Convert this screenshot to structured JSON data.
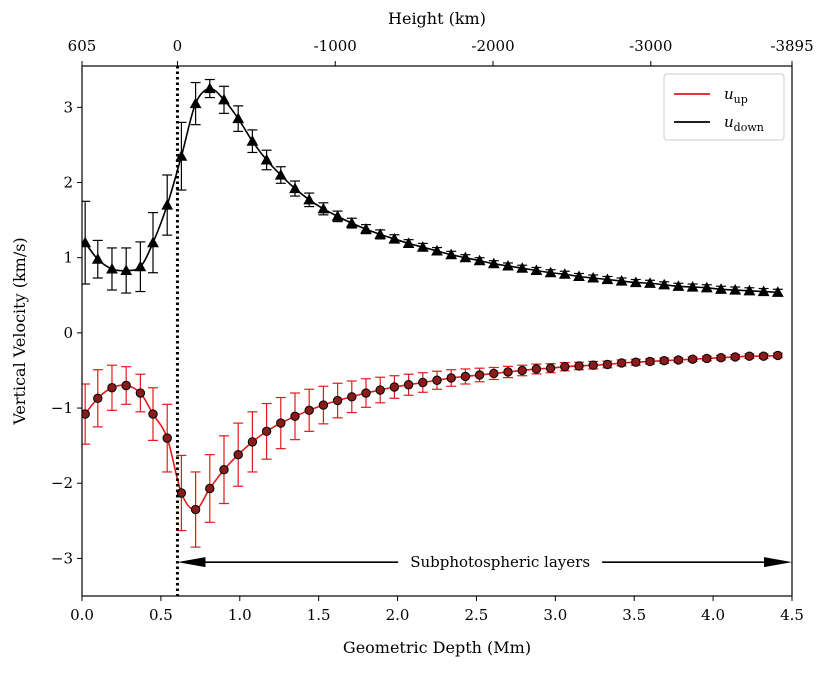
{
  "chart_data": {
    "type": "line",
    "xlabel": "Geometric Depth (Mm)",
    "ylabel": "Vertical Velocity (km/s)",
    "top_xlabel": "Height (km)",
    "xlim": [
      0.0,
      4.5
    ],
    "ylim": [
      -3.5,
      3.55
    ],
    "xticks": [
      0.0,
      0.5,
      1.0,
      1.5,
      2.0,
      2.5,
      3.0,
      3.5,
      4.0,
      4.5
    ],
    "xtick_labels": [
      "0.0",
      "0.5",
      "1.0",
      "1.5",
      "2.0",
      "2.5",
      "3.0",
      "3.5",
      "4.0",
      "4.5"
    ],
    "yticks": [
      -3,
      -2,
      -1,
      0,
      1,
      2,
      3
    ],
    "ytick_labels": [
      "−3",
      "−2",
      "−1",
      "0",
      "1",
      "2",
      "3"
    ],
    "top_ticks": [
      {
        "x": 0.0,
        "label": "605"
      },
      {
        "x": 0.605,
        "label": "0"
      },
      {
        "x": 1.605,
        "label": "-1000"
      },
      {
        "x": 2.605,
        "label": "-2000"
      },
      {
        "x": 3.605,
        "label": "-3000"
      },
      {
        "x": 4.5,
        "label": "-3895"
      }
    ],
    "reference_line_x": 0.605,
    "annotation": {
      "text": "Subphotospheric layers",
      "x_start": 0.605,
      "x_end": 4.5,
      "y": -3.05,
      "text_x": 2.65
    },
    "legend_position": "upper right",
    "series": [
      {
        "name": "u_up",
        "legend_main": "u",
        "legend_sub": "up",
        "color": "#e31a1c",
        "marker": "circle",
        "x": [
          0.02,
          0.1,
          0.19,
          0.28,
          0.37,
          0.45,
          0.54,
          0.63,
          0.72,
          0.81,
          0.9,
          0.99,
          1.08,
          1.17,
          1.26,
          1.35,
          1.44,
          1.53,
          1.62,
          1.71,
          1.8,
          1.89,
          1.98,
          2.07,
          2.16,
          2.25,
          2.34,
          2.43,
          2.52,
          2.61,
          2.7,
          2.79,
          2.88,
          2.97,
          3.06,
          3.15,
          3.24,
          3.33,
          3.42,
          3.51,
          3.6,
          3.69,
          3.78,
          3.87,
          3.96,
          4.05,
          4.14,
          4.23,
          4.32,
          4.41
        ],
        "y": [
          -1.08,
          -0.87,
          -0.73,
          -0.7,
          -0.8,
          -1.08,
          -1.4,
          -2.13,
          -2.35,
          -2.07,
          -1.82,
          -1.62,
          -1.45,
          -1.31,
          -1.2,
          -1.11,
          -1.03,
          -0.96,
          -0.9,
          -0.85,
          -0.8,
          -0.76,
          -0.72,
          -0.69,
          -0.66,
          -0.63,
          -0.6,
          -0.58,
          -0.56,
          -0.54,
          -0.52,
          -0.5,
          -0.48,
          -0.47,
          -0.45,
          -0.44,
          -0.43,
          -0.42,
          -0.4,
          -0.39,
          -0.38,
          -0.37,
          -0.36,
          -0.35,
          -0.34,
          -0.33,
          -0.32,
          -0.31,
          -0.31,
          -0.3
        ],
        "err": [
          0.4,
          0.38,
          0.3,
          0.25,
          0.25,
          0.35,
          0.45,
          0.5,
          0.5,
          0.45,
          0.45,
          0.42,
          0.4,
          0.37,
          0.34,
          0.31,
          0.28,
          0.25,
          0.23,
          0.21,
          0.19,
          0.17,
          0.15,
          0.14,
          0.13,
          0.12,
          0.11,
          0.1,
          0.09,
          0.08,
          0.075,
          0.07,
          0.065,
          0.06,
          0.055,
          0.05,
          0.05,
          0.045,
          0.04,
          0.04,
          0.035,
          0.035,
          0.03,
          0.03,
          0.03,
          0.03,
          0.03,
          0.03,
          0.03,
          0.03
        ]
      },
      {
        "name": "u_down",
        "legend_main": "u",
        "legend_sub": "down",
        "color": "#000000",
        "marker": "triangle",
        "x": [
          0.02,
          0.1,
          0.19,
          0.28,
          0.37,
          0.45,
          0.54,
          0.63,
          0.72,
          0.81,
          0.9,
          0.99,
          1.08,
          1.17,
          1.26,
          1.35,
          1.44,
          1.53,
          1.62,
          1.71,
          1.8,
          1.89,
          1.98,
          2.07,
          2.16,
          2.25,
          2.34,
          2.43,
          2.52,
          2.61,
          2.7,
          2.79,
          2.88,
          2.97,
          3.06,
          3.15,
          3.24,
          3.33,
          3.42,
          3.51,
          3.6,
          3.69,
          3.78,
          3.87,
          3.96,
          4.05,
          4.14,
          4.23,
          4.32,
          4.41
        ],
        "y": [
          1.2,
          0.98,
          0.85,
          0.83,
          0.88,
          1.2,
          1.7,
          2.35,
          3.05,
          3.25,
          3.1,
          2.85,
          2.55,
          2.3,
          2.1,
          1.92,
          1.77,
          1.65,
          1.55,
          1.46,
          1.38,
          1.31,
          1.25,
          1.19,
          1.14,
          1.09,
          1.04,
          1.0,
          0.96,
          0.92,
          0.89,
          0.86,
          0.83,
          0.8,
          0.78,
          0.75,
          0.73,
          0.71,
          0.69,
          0.67,
          0.66,
          0.64,
          0.62,
          0.61,
          0.6,
          0.58,
          0.57,
          0.56,
          0.55,
          0.54
        ],
        "err": [
          0.55,
          0.25,
          0.28,
          0.3,
          0.33,
          0.4,
          0.4,
          0.45,
          0.28,
          0.12,
          0.18,
          0.17,
          0.15,
          0.13,
          0.11,
          0.1,
          0.09,
          0.08,
          0.07,
          0.065,
          0.06,
          0.06,
          0.055,
          0.05,
          0.05,
          0.045,
          0.045,
          0.04,
          0.04,
          0.04,
          0.04,
          0.04,
          0.04,
          0.04,
          0.04,
          0.04,
          0.04,
          0.04,
          0.04,
          0.04,
          0.04,
          0.04,
          0.04,
          0.04,
          0.04,
          0.04,
          0.04,
          0.04,
          0.04,
          0.04
        ]
      }
    ]
  }
}
